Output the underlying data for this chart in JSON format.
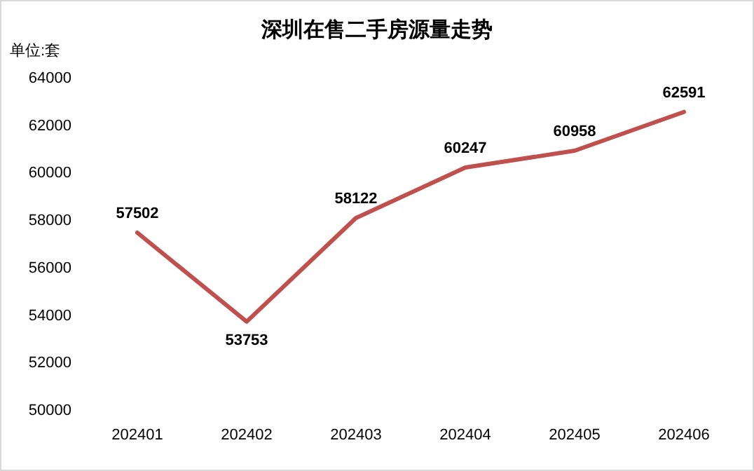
{
  "chart_data": {
    "type": "line",
    "title": "深圳在售二手房源量走势",
    "ylabel": "单位:套",
    "categories": [
      "202401",
      "202402",
      "202403",
      "202404",
      "202405",
      "202406"
    ],
    "series": [
      {
        "color": "#c0504d",
        "values": [
          57502,
          53753,
          58122,
          60247,
          60958,
          62591
        ]
      }
    ],
    "ylim": [
      50000,
      64000
    ],
    "yticks": [
      50000,
      52000,
      54000,
      56000,
      58000,
      60000,
      62000,
      64000
    ],
    "data_labels": true,
    "marker": "none",
    "line_style": "solid",
    "grid": false
  }
}
